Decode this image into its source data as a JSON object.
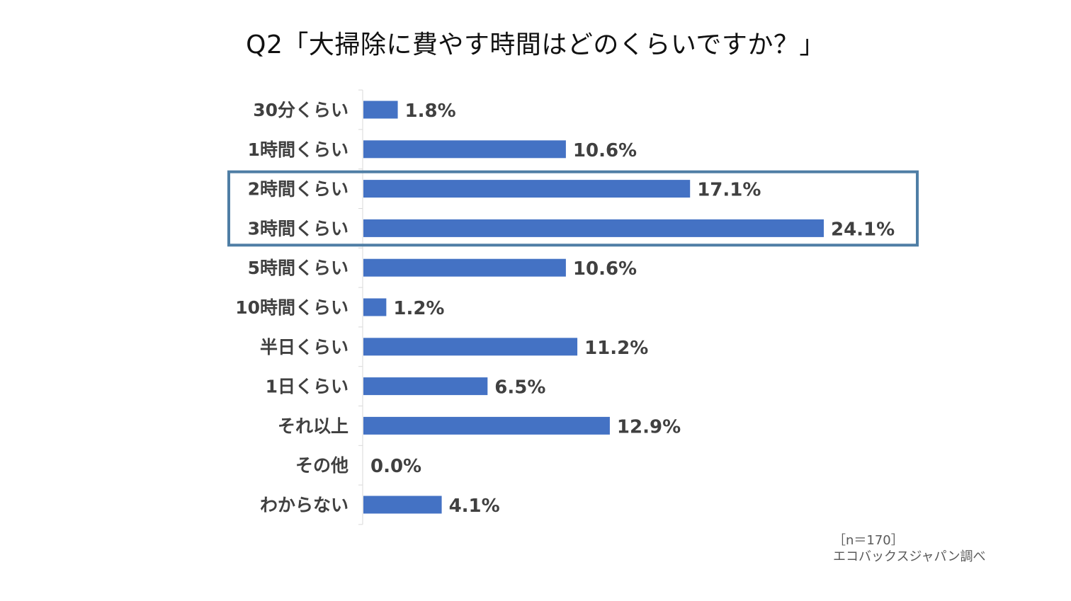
{
  "chart_data": {
    "type": "bar",
    "orientation": "horizontal",
    "title": "Q2「大掃除に費やす時間はどのくらいですか？」",
    "categories": [
      "30分くらい",
      "1時間くらい",
      "2時間くらい",
      "3時間くらい",
      "5時間くらい",
      "10時間くらい",
      "半日くらい",
      "1日くらい",
      "それ以上",
      "その他",
      "わからない"
    ],
    "values": [
      1.8,
      10.6,
      17.1,
      24.1,
      10.6,
      1.2,
      11.2,
      6.5,
      12.9,
      0.0,
      4.1
    ],
    "value_labels": [
      "1.8%",
      "10.6%",
      "17.1%",
      "24.1%",
      "10.6%",
      "1.2%",
      "11.2%",
      "6.5%",
      "12.9%",
      "0.0%",
      "4.1%"
    ],
    "bar_color": "#4472C4",
    "highlight": {
      "categories": [
        "2時間くらい",
        "3時間くらい"
      ],
      "color": "#4F7EA5"
    },
    "xlim": [
      0,
      24.1
    ],
    "grid": false,
    "legend": "none"
  },
  "footnote": {
    "sample": "［n＝170］",
    "source": "エコバックスジャパン調べ"
  }
}
